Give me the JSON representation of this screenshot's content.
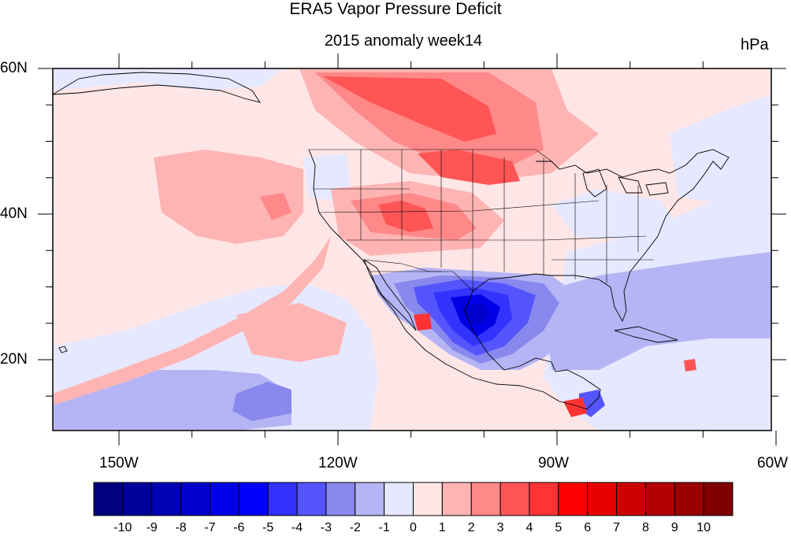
{
  "title": "ERA5 Vapor Pressure Deficit",
  "subtitle": "2015 anomaly week14",
  "units": "hPa",
  "lat_labels": [
    "60N",
    "40N",
    "20N"
  ],
  "lon_labels": [
    "150W",
    "120W",
    "90W",
    "60W"
  ],
  "colorbar": {
    "labels": [
      "-10",
      "-9",
      "-8",
      "-7",
      "-6",
      "-5",
      "-4",
      "-3",
      "-2",
      "-1",
      "0",
      "1",
      "2",
      "3",
      "4",
      "5",
      "6",
      "7",
      "8",
      "9",
      "10"
    ],
    "colors": [
      "#000080",
      "#00009a",
      "#0000b4",
      "#0000cd",
      "#0000e6",
      "#0000ff",
      "#3333ff",
      "#5555ff",
      "#8888ee",
      "#b5b5f5",
      "#e6e8ff",
      "#ffe6e6",
      "#ffb4b4",
      "#ff8888",
      "#ff5555",
      "#ff3333",
      "#ff0000",
      "#e60000",
      "#cd0000",
      "#b40000",
      "#9a0000",
      "#800000"
    ]
  },
  "map": {
    "lon_range": [
      -160,
      -60
    ],
    "lat_range": [
      10,
      60
    ]
  }
}
